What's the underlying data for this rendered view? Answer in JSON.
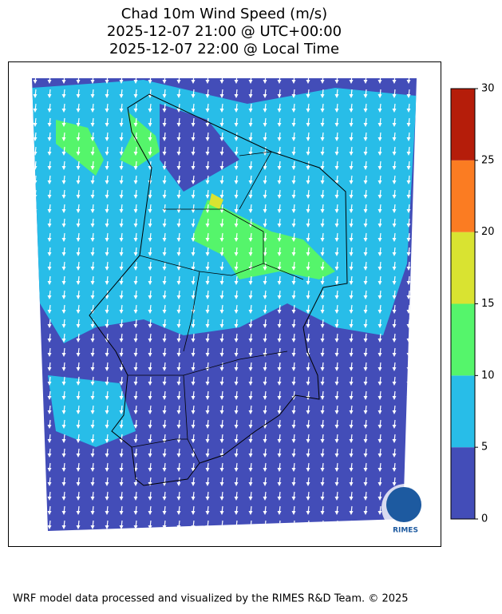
{
  "title": [
    "Chad 10m Wind Speed (m/s)",
    "2025-12-07 21:00 @ UTC+00:00",
    "2025-12-07 22:00 @ Local Time"
  ],
  "colorbar": {
    "ticks": [
      0,
      5,
      10,
      15,
      20,
      25,
      30
    ],
    "colors": [
      "#434db8",
      "#28bde8",
      "#55f56b",
      "#d9e331",
      "#fb7c22",
      "#b51d0a"
    ]
  },
  "logo": "RIMES",
  "footer": "WRF model data processed and visualized by the RIMES R&D Team. © 2025"
}
